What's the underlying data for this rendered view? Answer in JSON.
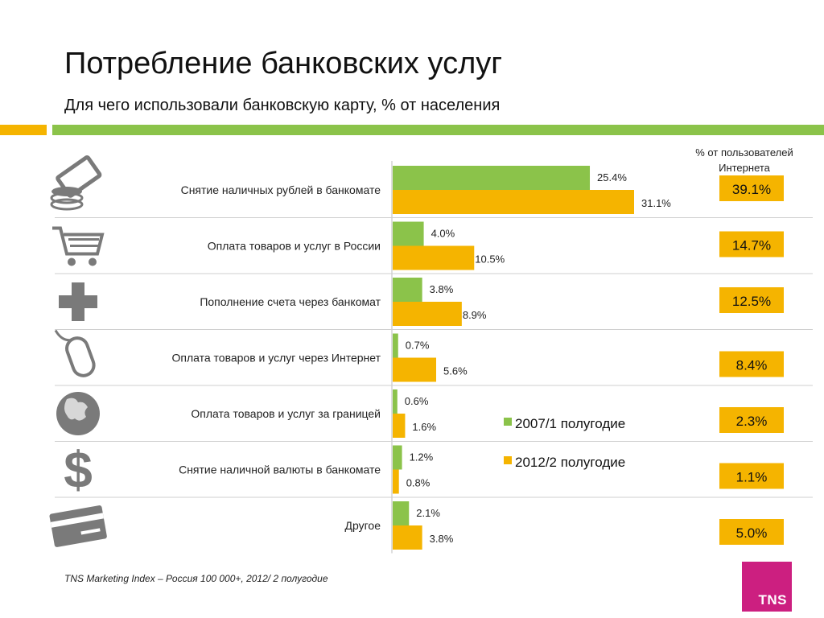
{
  "title": "Потребление банковских услуг",
  "subtitle": "Для чего использовали банковскую карту, % от населения",
  "internet_header": [
    "% от пользователей",
    "Интернета"
  ],
  "source": "TNS Marketing Index – Россия 100 000+, 2012/ 2 полугодие",
  "logo_text": "TNS",
  "colors": {
    "green": "#8bc34a",
    "orange": "#f5b400",
    "accent_bar_orange": "#f5b400",
    "accent_bar_green": "#8bc34a",
    "logo": "#cc1f80",
    "icon": "#7a7a7a"
  },
  "icons": [
    "money-icon",
    "shopping-cart-icon",
    "plus-cross-icon",
    "mouse-icon",
    "globe-icon",
    "dollar-icon",
    "credit-card-icon"
  ],
  "chart_data": {
    "type": "bar",
    "orientation": "horizontal",
    "categories": [
      "Снятие наличных рублей в банкомате",
      "Оплата товаров и услуг в России",
      "Пополнение счета через банкомат",
      "Оплата товаров и услуг через Интернет",
      "Оплата товаров и услуг за границей",
      "Снятие наличной валюты в банкомате",
      "Другое"
    ],
    "series": [
      {
        "name": "2007/1 полугодие",
        "values": [
          25.4,
          4.0,
          3.8,
          0.7,
          0.6,
          1.2,
          2.1
        ],
        "labels": [
          "25.4%",
          "4.0%",
          "3.8%",
          "0.7%",
          "0.6%",
          "1.2%",
          "2.1%"
        ]
      },
      {
        "name": "2012/2 полугодие",
        "values": [
          31.1,
          10.5,
          8.9,
          5.6,
          1.6,
          0.8,
          3.8
        ],
        "labels": [
          "31.1%",
          "10.5%",
          "8.9%",
          "5.6%",
          "1.6%",
          "0.8%",
          "3.8%"
        ]
      }
    ],
    "internet_users": {
      "values": [
        39.1,
        14.7,
        12.5,
        8.4,
        2.3,
        1.1,
        5.0
      ],
      "labels": [
        "39.1%",
        "14.7%",
        "12.5%",
        "8.4%",
        "2.3%",
        "1.1%",
        "5.0%"
      ]
    },
    "legend_position": "center-right"
  }
}
